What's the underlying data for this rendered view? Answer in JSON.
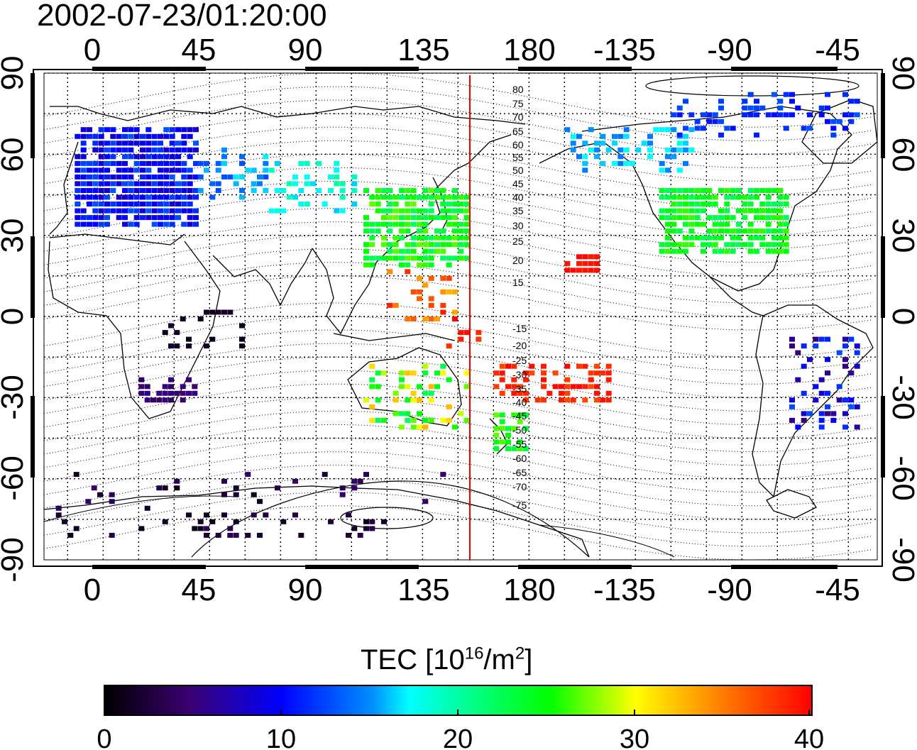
{
  "timestamp": "2002-07-23/01:20:00",
  "map": {
    "top_lon_ticks": [
      "0",
      "45",
      "90",
      "135",
      "180",
      "-135",
      "-90",
      "-45"
    ],
    "bottom_lon_ticks": [
      "0",
      "45",
      "90",
      "135",
      "180",
      "-135",
      "-90",
      "-45"
    ],
    "left_lat_ticks": [
      "90",
      "60",
      "30",
      "0",
      "-30",
      "-60",
      "-90"
    ],
    "right_lat_ticks": [
      "90",
      "60",
      "30",
      "0",
      "-30",
      "-60",
      "-90"
    ],
    "contour_labels_north": [
      "80",
      "75",
      "70",
      "65",
      "60",
      "55",
      "50",
      "45",
      "40",
      "35",
      "30",
      "25",
      "20",
      "15"
    ],
    "contour_labels_south": [
      "-15",
      "-20",
      "-25",
      "-30",
      "-35",
      "-40",
      "-45",
      "-50",
      "-55",
      "-60",
      "-65",
      "-70",
      "-75"
    ],
    "terminator_color": "#ee0000"
  },
  "colorbar": {
    "title_main": "TEC  [10",
    "title_exp": "16",
    "title_mid": "/m",
    "title_exp2": "2",
    "title_end": "]",
    "ticks": [
      "0",
      "10",
      "20",
      "30",
      "40"
    ],
    "range": [
      0,
      40
    ],
    "colors": [
      "#000000",
      "#3a0070",
      "#0000ff",
      "#00ffff",
      "#00ff00",
      "#ffff00",
      "#ff8000",
      "#ff0000"
    ]
  }
}
